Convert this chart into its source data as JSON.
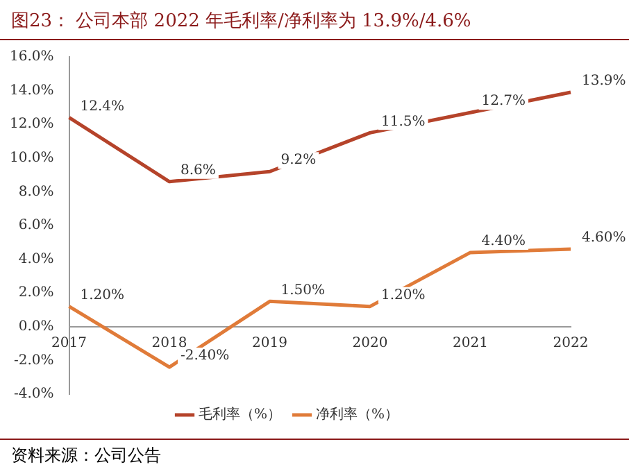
{
  "chart_data": {
    "type": "line",
    "title": "图23：   公司本部 2022 年毛利率/净利率为 13.9%/4.6%",
    "categories": [
      "2017",
      "2018",
      "2019",
      "2020",
      "2021",
      "2022"
    ],
    "series": [
      {
        "name": "毛利率（%）",
        "color": "#b5432a",
        "values": [
          12.4,
          8.6,
          9.2,
          11.5,
          12.7,
          13.9
        ],
        "value_labels": [
          "12.4%",
          "8.6%",
          "9.2%",
          "11.5%",
          "12.7%",
          "13.9%"
        ]
      },
      {
        "name": "净利率（%）",
        "color": "#e07b39",
        "values": [
          1.2,
          -2.4,
          1.5,
          1.2,
          4.4,
          4.6
        ],
        "value_labels": [
          "1.20%",
          "-2.40%",
          "1.50%",
          "1.20%",
          "4.40%",
          "4.60%"
        ]
      }
    ],
    "ylim": [
      -4,
      16
    ],
    "yticks": [
      {
        "value": -4,
        "label": "-4.0%"
      },
      {
        "value": -2,
        "label": "-2.0%"
      },
      {
        "value": 0,
        "label": "0.0%"
      },
      {
        "value": 2,
        "label": "2.0%"
      },
      {
        "value": 4,
        "label": "4.0%"
      },
      {
        "value": 6,
        "label": "6.0%"
      },
      {
        "value": 8,
        "label": "8.0%"
      },
      {
        "value": 10,
        "label": "10.0%"
      },
      {
        "value": 12,
        "label": "12.0%"
      },
      {
        "value": 14,
        "label": "14.0%"
      },
      {
        "value": 16,
        "label": "16.0%"
      }
    ],
    "grid": false,
    "legend": "bottom",
    "marker": "none",
    "line_style": "solid",
    "annotations": [
      "资料来源：公司公告"
    ]
  }
}
